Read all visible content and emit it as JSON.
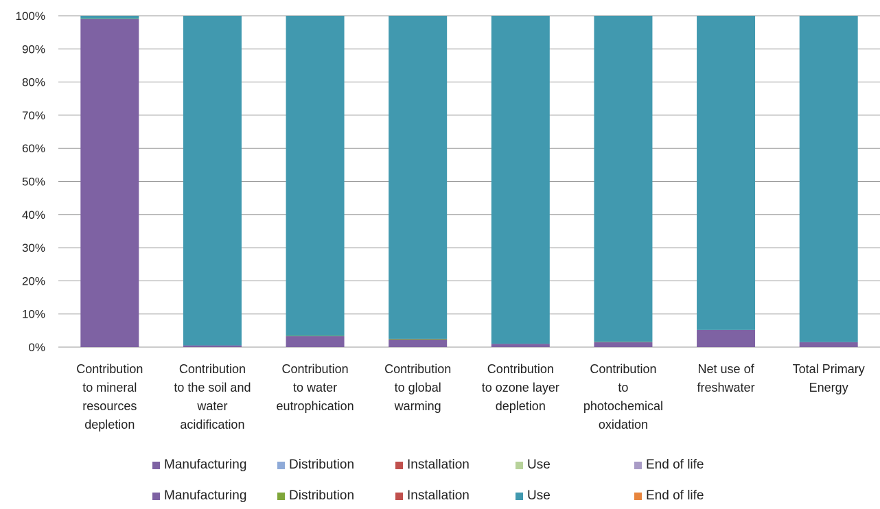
{
  "chart_data": {
    "type": "bar",
    "stacked": true,
    "percent": true,
    "categories": [
      [
        "Contribution",
        "to mineral",
        "resources",
        "depletion"
      ],
      [
        "Contribution",
        "to the soil and",
        "water",
        "acidification"
      ],
      [
        "Contribution",
        "to water",
        "eutrophication"
      ],
      [
        "Contribution",
        "to global",
        "warming"
      ],
      [
        "Contribution",
        "to ozone layer",
        "depletion"
      ],
      [
        "Contribution",
        "to",
        "photochemical",
        "oxidation"
      ],
      [
        "Net use of",
        "freshwater"
      ],
      [
        "Total Primary",
        "Energy"
      ]
    ],
    "y_ticks": [
      "0%",
      "10%",
      "20%",
      "30%",
      "40%",
      "50%",
      "60%",
      "70%",
      "80%",
      "90%",
      "100%"
    ],
    "ylim": [
      0,
      100
    ],
    "grid": true,
    "legend_position": "bottom",
    "series": [
      {
        "name": "Manufacturing",
        "color": "#7E62A3",
        "values": [
          99.0,
          0.5,
          3.3,
          2.3,
          1.0,
          1.5,
          5.2,
          1.5
        ]
      },
      {
        "name": "Distribution",
        "color": "#7FA63A",
        "values": [
          0.1,
          0.0,
          0.1,
          0.2,
          0.0,
          0.1,
          0.0,
          0.0
        ]
      },
      {
        "name": "Installation",
        "color": "#C0504D",
        "values": [
          0.0,
          0.0,
          0.0,
          0.0,
          0.0,
          0.0,
          0.0,
          0.0
        ]
      },
      {
        "name": "Use",
        "color": "#4199AF",
        "values": [
          0.9,
          99.5,
          96.6,
          97.5,
          99.0,
          98.4,
          94.8,
          98.5
        ]
      },
      {
        "name": "End of life",
        "color": "#E8853D",
        "values": [
          0.0,
          0.0,
          0.0,
          0.0,
          0.0,
          0.0,
          0.0,
          0.0
        ]
      }
    ],
    "legend_rows": [
      [
        {
          "label": "Manufacturing",
          "color": "#7E62A3"
        },
        {
          "label": "Distribution",
          "color": "#8EAAD8"
        },
        {
          "label": "Installation",
          "color": "#C0504D"
        },
        {
          "label": "Use",
          "color": "#B7D29A"
        },
        {
          "label": "End of life",
          "color": "#A99BC6"
        }
      ],
      [
        {
          "label": "Manufacturing",
          "color": "#7E62A3"
        },
        {
          "label": "Distribution",
          "color": "#7FA63A"
        },
        {
          "label": "Installation",
          "color": "#C0504D"
        },
        {
          "label": "Use",
          "color": "#4199AF"
        },
        {
          "label": "End of life",
          "color": "#E8853D"
        }
      ]
    ]
  }
}
